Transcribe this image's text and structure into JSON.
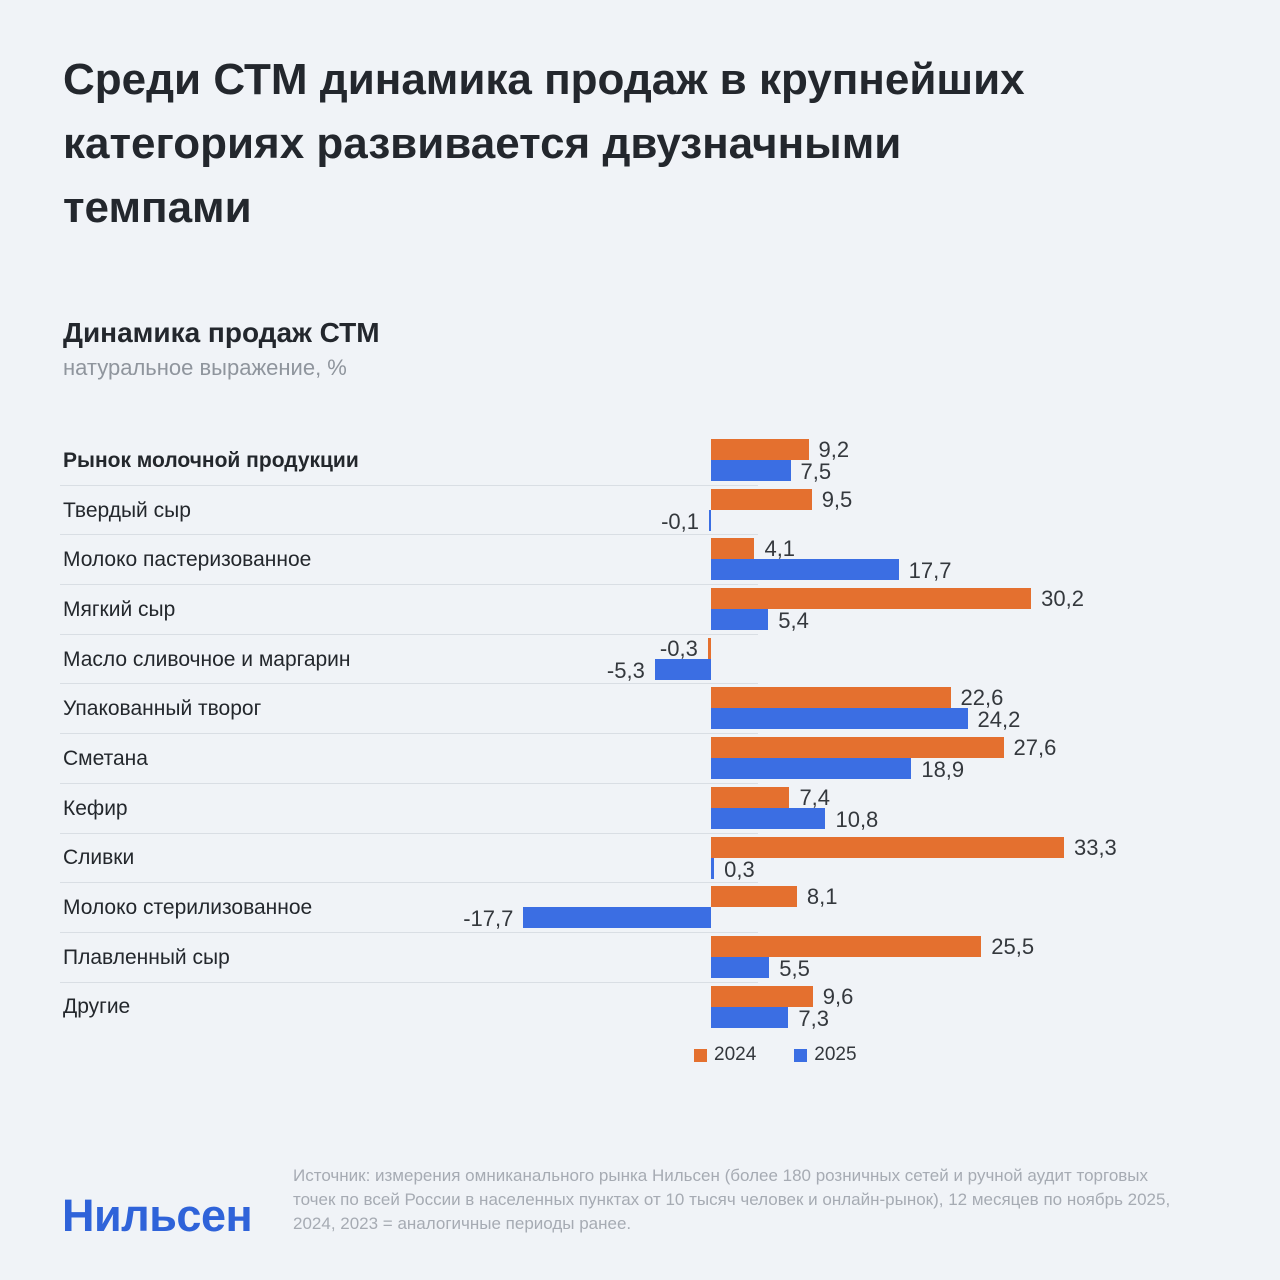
{
  "header": {
    "title_lines": [
      "Среди СТМ динамика продаж в крупнейших",
      "категориях развивается двузначными",
      "темпами"
    ]
  },
  "chart": {
    "heading": "Динамика продаж СТМ",
    "unit": "натуральное выражение, %"
  },
  "chart_data": {
    "type": "bar",
    "orientation": "horizontal",
    "title": "Динамика продаж СТМ",
    "unit_label": "натуральное выражение, %",
    "categories": [
      "Рынок молочной продукции",
      "Твердый сыр",
      "Молоко пастеризованное",
      "Мягкий сыр",
      "Масло сливочное и маргарин",
      "Упакованный творог",
      "Сметана",
      "Кефир",
      "Сливки",
      "Молоко стерилизованное",
      "Плавленный сыр",
      "Другие"
    ],
    "emphasized_category_index": 0,
    "series": [
      {
        "name": "2024",
        "color": "#e4702f",
        "values": [
          9.2,
          9.5,
          4.1,
          30.2,
          -0.3,
          22.6,
          27.6,
          7.4,
          33.3,
          8.1,
          25.5,
          9.6
        ]
      },
      {
        "name": "2025",
        "color": "#3b6ee3",
        "values": [
          7.5,
          -0.1,
          17.7,
          5.4,
          -5.3,
          24.2,
          18.9,
          10.8,
          0.3,
          -17.7,
          5.5,
          7.3
        ]
      }
    ],
    "value_format": "decimal_comma",
    "baseline": 0,
    "xlim": [
      -20,
      36
    ],
    "gridlines": false,
    "legend_position": "bottom-center"
  },
  "footer": {
    "source": "Источник: измерения омниканального рынка Нильсен (более 180 розничных сетей и ручной аудит торговых точек по всей России в населенных пунктах от 10 тысяч человек и онлайн-рынок), 12 месяцев по ноябрь 2025, 2024, 2023 = аналогичные периоды ранее.",
    "logo": "Нильсен"
  }
}
